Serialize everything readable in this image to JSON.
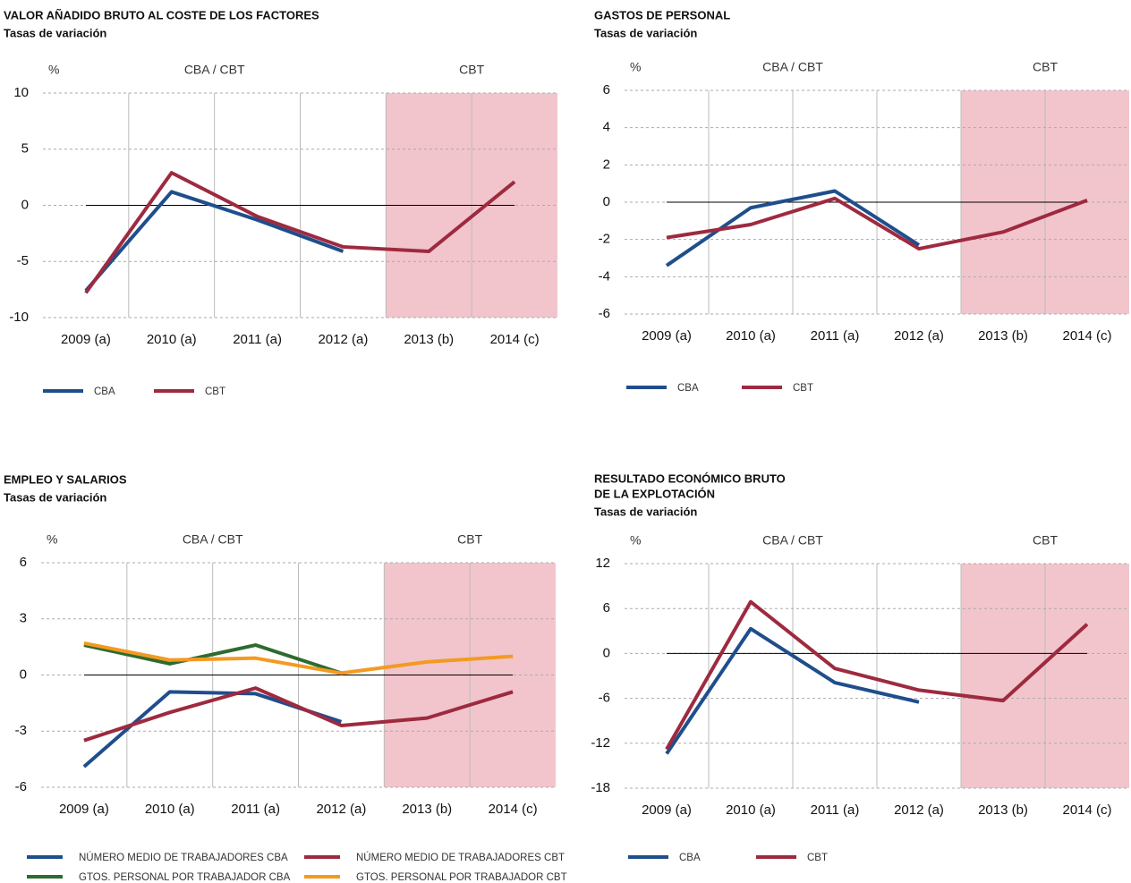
{
  "chart_data": [
    {
      "type": "line",
      "title": [
        "VALOR AÑADIDO BRUTO AL COSTE DE LOS FACTORES"
      ],
      "subtitle": "Tasas de variación",
      "unit_label": "%",
      "regions": [
        {
          "label": "CBA / CBT",
          "span": 4
        },
        {
          "label": "CBT",
          "span": 2,
          "shade": "#f2c5cc"
        }
      ],
      "categories": [
        "2009 (a)",
        "2010 (a)",
        "2011 (a)",
        "2012 (a)",
        "2013 (b)",
        "2014 (c)"
      ],
      "ylim": [
        -10,
        10
      ],
      "yticks": [
        -10,
        -5,
        0,
        5,
        10
      ],
      "grid": true,
      "series": [
        {
          "name": "CBA",
          "color": "#1f4e8c",
          "values": [
            -7.6,
            1.2,
            -1.3,
            -4.1,
            null,
            null
          ]
        },
        {
          "name": "CBT",
          "color": "#9e2a3f",
          "values": [
            -7.8,
            2.9,
            -1.0,
            -3.7,
            -4.1,
            2.1
          ]
        }
      ]
    },
    {
      "type": "line",
      "title": [
        "GASTOS DE PERSONAL"
      ],
      "subtitle": "Tasas de variación",
      "unit_label": "%",
      "regions": [
        {
          "label": "CBA / CBT",
          "span": 4
        },
        {
          "label": "CBT",
          "span": 2,
          "shade": "#f2c5cc"
        }
      ],
      "categories": [
        "2009 (a)",
        "2010 (a)",
        "2011 (a)",
        "2012 (a)",
        "2013 (b)",
        "2014 (c)"
      ],
      "ylim": [
        -6,
        6
      ],
      "yticks": [
        -6,
        -4,
        -2,
        0,
        2,
        4,
        6
      ],
      "grid": true,
      "series": [
        {
          "name": "CBA",
          "color": "#1f4e8c",
          "values": [
            -3.4,
            -0.3,
            0.6,
            -2.3,
            null,
            null
          ]
        },
        {
          "name": "CBT",
          "color": "#9e2a3f",
          "values": [
            -1.9,
            -1.2,
            0.2,
            -2.5,
            -1.6,
            0.1
          ]
        }
      ]
    },
    {
      "type": "line",
      "title": [
        "EMPLEO Y SALARIOS"
      ],
      "subtitle": "Tasas de variación",
      "unit_label": "%",
      "regions": [
        {
          "label": "CBA / CBT",
          "span": 4
        },
        {
          "label": "CBT",
          "span": 2,
          "shade": "#f2c5cc"
        }
      ],
      "categories": [
        "2009 (a)",
        "2010 (a)",
        "2011 (a)",
        "2012 (a)",
        "2013 (b)",
        "2014 (c)"
      ],
      "ylim": [
        -6,
        6
      ],
      "yticks": [
        -6,
        -3,
        0,
        3,
        6
      ],
      "grid": true,
      "series": [
        {
          "name": "NÚMERO MEDIO DE TRABAJADORES CBA",
          "color": "#1f4e8c",
          "values": [
            -4.9,
            -0.9,
            -1.0,
            -2.5,
            null,
            null
          ]
        },
        {
          "name": "NÚMERO MEDIO DE TRABAJADORES CBT",
          "color": "#9e2a3f",
          "values": [
            -3.5,
            -2.0,
            -0.7,
            -2.7,
            -2.3,
            -0.9
          ]
        },
        {
          "name": "GTOS. PERSONAL POR TRABAJADOR CBA",
          "color": "#2e6b30",
          "values": [
            1.6,
            0.6,
            1.6,
            0.1,
            null,
            null
          ]
        },
        {
          "name": "GTOS. PERSONAL POR TRABAJADOR CBT",
          "color": "#f39a22",
          "values": [
            1.7,
            0.8,
            0.9,
            0.1,
            0.7,
            1.0
          ]
        }
      ]
    },
    {
      "type": "line",
      "title": [
        "RESULTADO ECONÓMICO BRUTO",
        "DE LA EXPLOTACIÓN"
      ],
      "subtitle": "Tasas de variación",
      "unit_label": "%",
      "regions": [
        {
          "label": "CBA / CBT",
          "span": 4
        },
        {
          "label": "CBT",
          "span": 2,
          "shade": "#f2c5cc"
        }
      ],
      "categories": [
        "2009 (a)",
        "2010 (a)",
        "2011 (a)",
        "2012 (a)",
        "2013 (b)",
        "2014 (c)"
      ],
      "ylim": [
        -18,
        12
      ],
      "yticks": [
        -18,
        -12,
        -6,
        0,
        6,
        12
      ],
      "grid": true,
      "series": [
        {
          "name": "CBA",
          "color": "#1f4e8c",
          "values": [
            -13.4,
            3.3,
            -3.9,
            -6.5,
            null,
            null
          ]
        },
        {
          "name": "CBT",
          "color": "#9e2a3f",
          "values": [
            -12.8,
            6.9,
            -2.0,
            -4.9,
            -6.3,
            3.9
          ]
        }
      ]
    }
  ]
}
